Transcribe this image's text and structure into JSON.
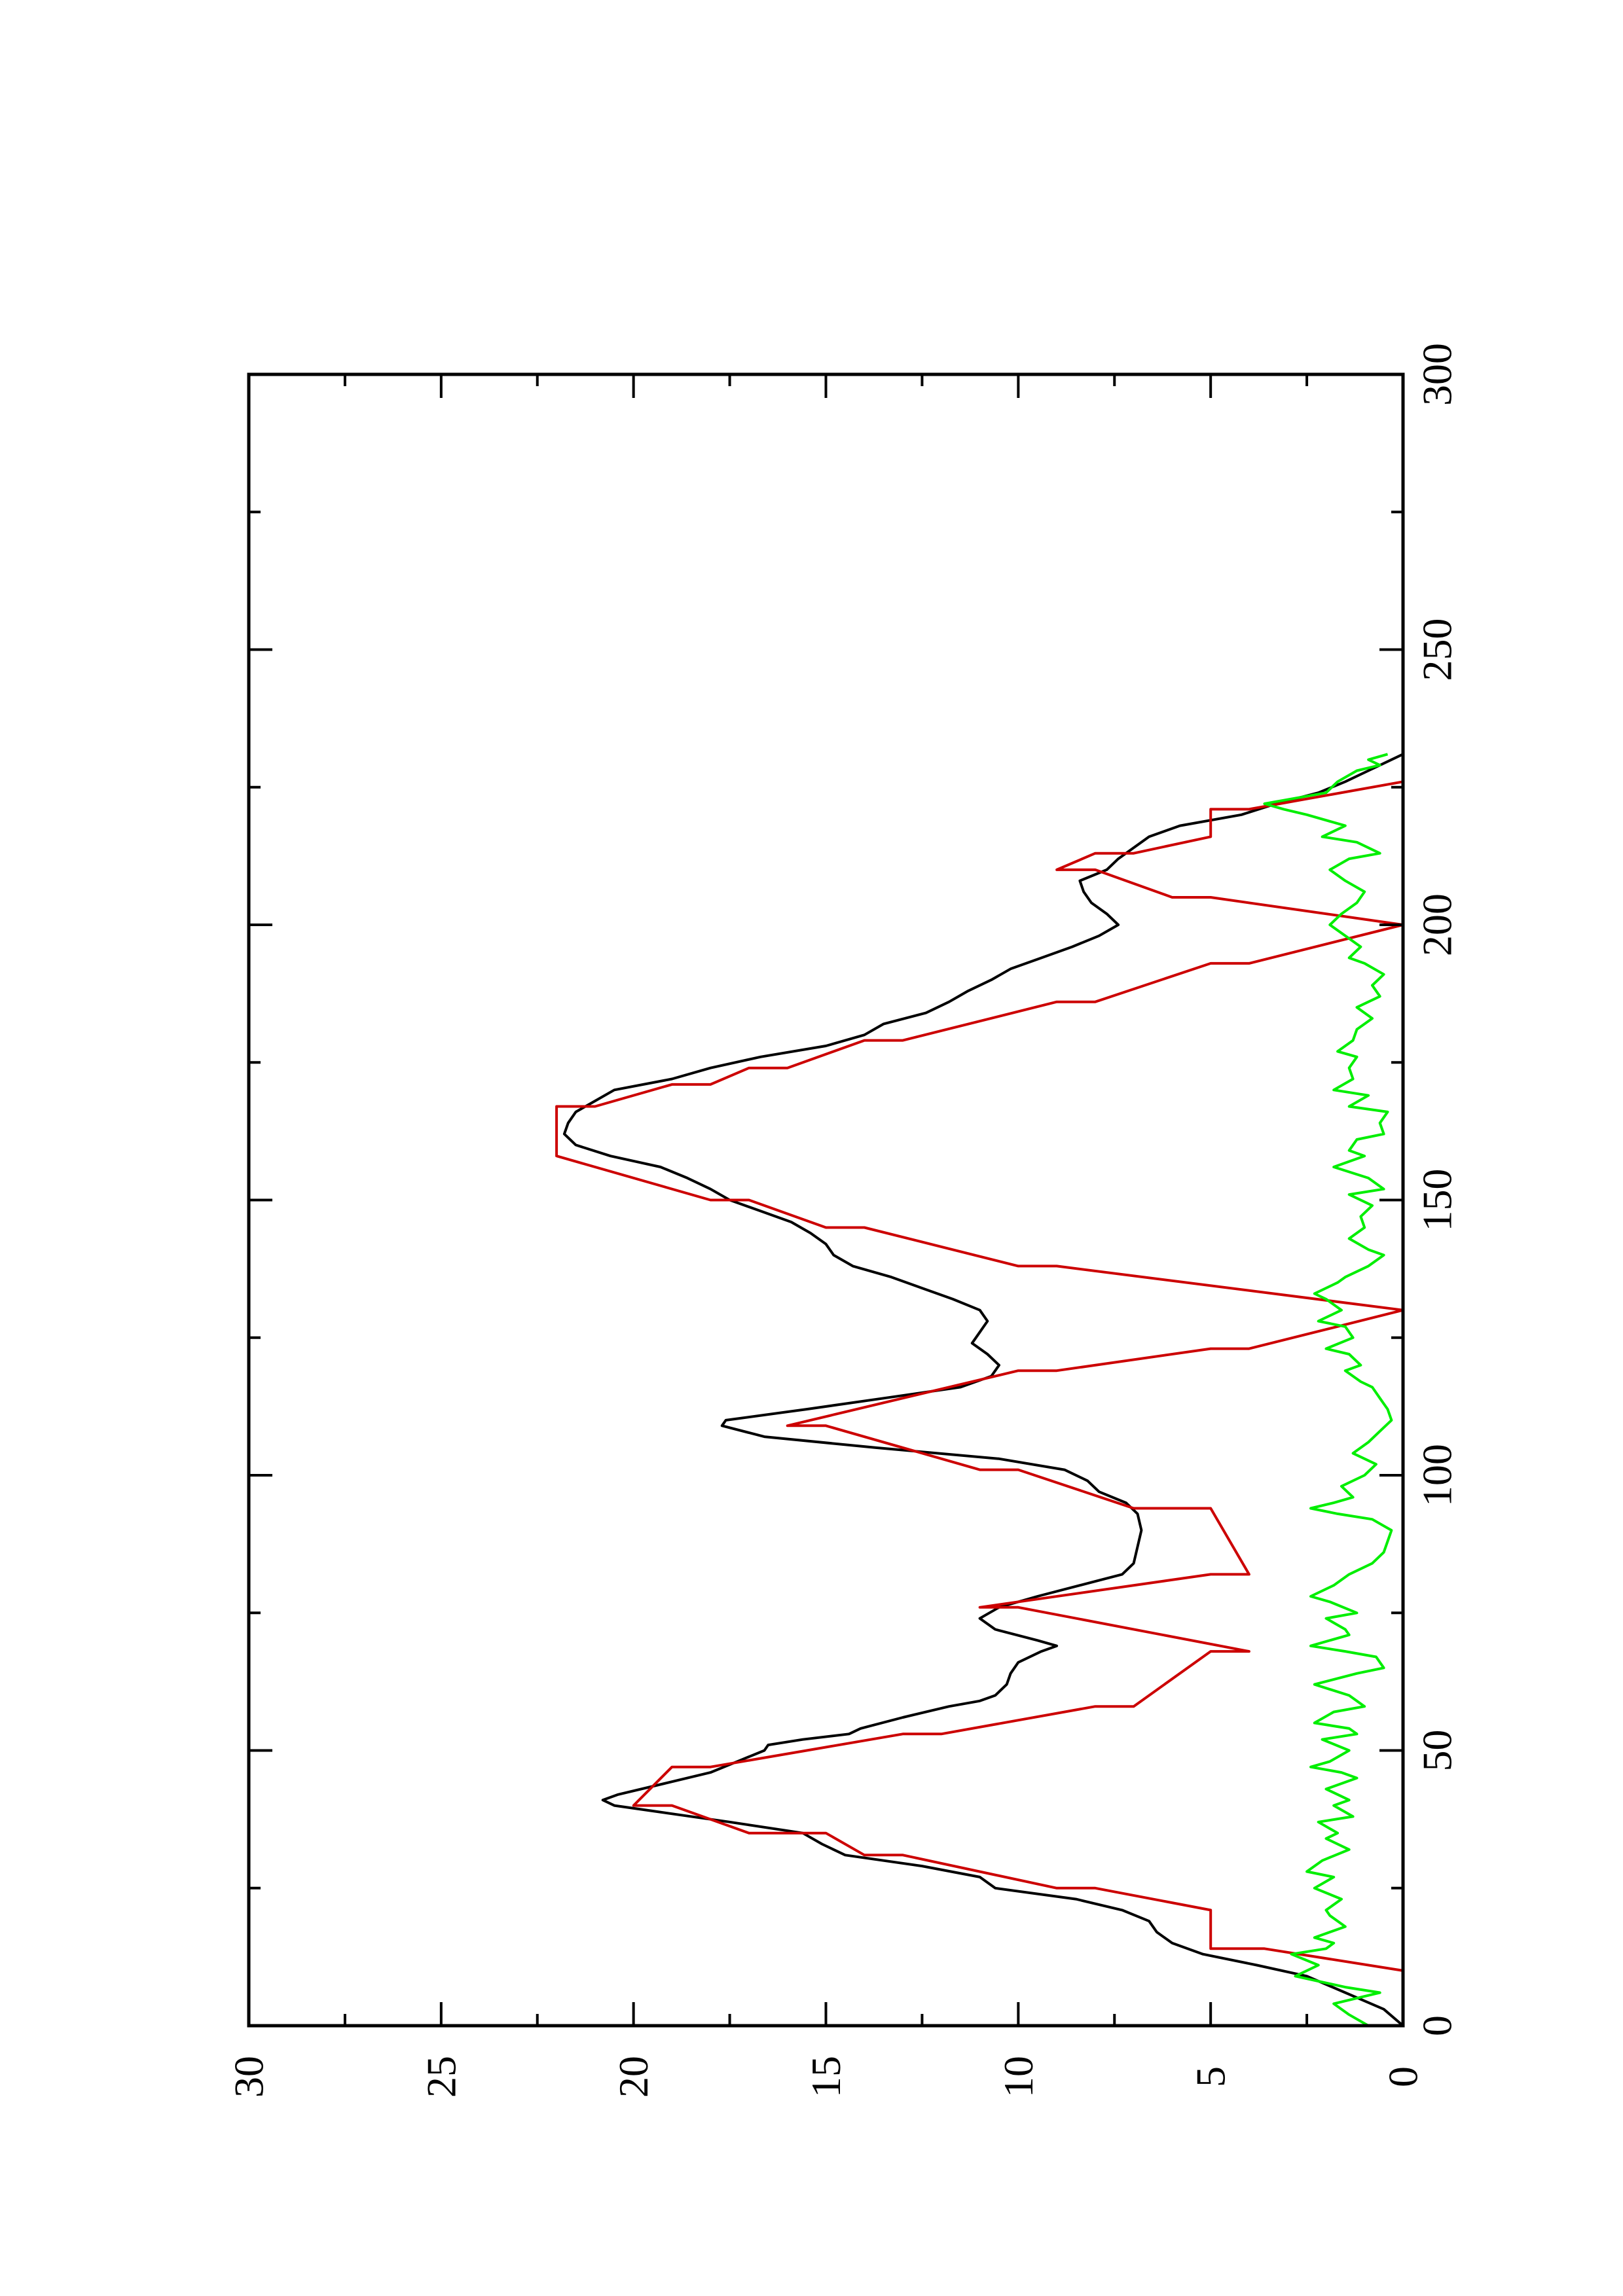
{
  "chart_data": {
    "type": "line",
    "orientation": "rotated-90-ccw",
    "title": "",
    "xlabel": "",
    "ylabel": "",
    "xlim": [
      0,
      300
    ],
    "ylim": [
      0,
      30
    ],
    "x_ticks": [
      0,
      50,
      100,
      150,
      200,
      250,
      300
    ],
    "y_ticks": [
      0,
      5,
      10,
      15,
      20,
      25,
      30
    ],
    "x_tick_labels": [
      "0",
      "50",
      "100",
      "150",
      "200",
      "250",
      "300"
    ],
    "y_tick_labels": [
      "0",
      "5",
      "10",
      "15",
      "20",
      "25",
      "30"
    ],
    "grid": false,
    "legend": "none",
    "series": [
      {
        "color": "#000000",
        "points": [
          [
            0,
            0
          ],
          [
            3,
            0.5
          ],
          [
            6,
            1.5
          ],
          [
            9,
            2.5
          ],
          [
            11,
            3.8
          ],
          [
            13,
            5.2
          ],
          [
            15,
            6
          ],
          [
            17,
            6.4
          ],
          [
            19,
            6.6
          ],
          [
            21,
            7.3
          ],
          [
            23,
            8.5
          ],
          [
            25,
            10.6
          ],
          [
            27,
            11
          ],
          [
            29,
            12.5
          ],
          [
            31,
            14.5
          ],
          [
            33,
            15.1
          ],
          [
            35,
            15.6
          ],
          [
            37,
            17.5
          ],
          [
            39,
            19.5
          ],
          [
            40,
            20.5
          ],
          [
            41,
            20.8
          ],
          [
            42,
            20.4
          ],
          [
            44,
            19.2
          ],
          [
            46,
            18
          ],
          [
            48,
            17.3
          ],
          [
            50,
            16.6
          ],
          [
            51,
            16.5
          ],
          [
            52,
            15.6
          ],
          [
            53,
            14.4
          ],
          [
            54,
            14.1
          ],
          [
            56,
            13
          ],
          [
            58,
            11.8
          ],
          [
            59,
            11
          ],
          [
            60,
            10.6
          ],
          [
            62,
            10.3
          ],
          [
            64,
            10.2
          ],
          [
            66,
            10
          ],
          [
            68,
            9.4
          ],
          [
            69,
            9
          ],
          [
            70,
            9.5
          ],
          [
            72,
            10.6
          ],
          [
            74,
            11
          ],
          [
            76,
            10.5
          ],
          [
            78,
            9.5
          ],
          [
            80,
            8.4
          ],
          [
            82,
            7.3
          ],
          [
            84,
            7
          ],
          [
            87,
            6.9
          ],
          [
            90,
            6.8
          ],
          [
            93,
            6.9
          ],
          [
            95,
            7.2
          ],
          [
            97,
            7.9
          ],
          [
            99,
            8.2
          ],
          [
            101,
            8.8
          ],
          [
            103,
            10.5
          ],
          [
            105,
            13.7
          ],
          [
            107,
            16.6
          ],
          [
            109,
            17.7
          ],
          [
            110,
            17.6
          ],
          [
            112,
            15.5
          ],
          [
            114,
            13.5
          ],
          [
            116,
            11.5
          ],
          [
            118,
            10.7
          ],
          [
            120,
            10.5
          ],
          [
            122,
            10.8
          ],
          [
            124,
            11.2
          ],
          [
            126,
            11
          ],
          [
            128,
            10.8
          ],
          [
            130,
            11
          ],
          [
            132,
            11.7
          ],
          [
            134,
            12.5
          ],
          [
            136,
            13.3
          ],
          [
            138,
            14.3
          ],
          [
            140,
            14.8
          ],
          [
            142,
            15
          ],
          [
            144,
            15.4
          ],
          [
            146,
            15.9
          ],
          [
            148,
            16.7
          ],
          [
            150,
            17.5
          ],
          [
            152,
            18
          ],
          [
            154,
            18.6
          ],
          [
            156,
            19.3
          ],
          [
            158,
            20.6
          ],
          [
            160,
            21.5
          ],
          [
            162,
            21.8
          ],
          [
            164,
            21.7
          ],
          [
            166,
            21.5
          ],
          [
            168,
            21
          ],
          [
            170,
            20.5
          ],
          [
            172,
            19
          ],
          [
            174,
            18
          ],
          [
            176,
            16.7
          ],
          [
            178,
            15
          ],
          [
            180,
            14
          ],
          [
            182,
            13.5
          ],
          [
            184,
            12.4
          ],
          [
            186,
            11.8
          ],
          [
            188,
            11.3
          ],
          [
            190,
            10.7
          ],
          [
            192,
            10.2
          ],
          [
            194,
            9.4
          ],
          [
            196,
            8.6
          ],
          [
            198,
            7.9
          ],
          [
            200,
            7.4
          ],
          [
            202,
            7.7
          ],
          [
            204,
            8.1
          ],
          [
            206,
            8.3
          ],
          [
            208,
            8.4
          ],
          [
            210,
            7.7
          ],
          [
            212,
            7.4
          ],
          [
            214,
            7
          ],
          [
            216,
            6.6
          ],
          [
            218,
            5.8
          ],
          [
            220,
            4.2
          ],
          [
            222,
            3.3
          ],
          [
            224,
            2.2
          ],
          [
            226,
            1.5
          ],
          [
            228,
            0.9
          ],
          [
            230,
            0.3
          ],
          [
            231,
            0
          ]
        ]
      },
      {
        "color": "#cc0000",
        "points": [
          [
            10,
            0
          ],
          [
            14,
            3.6
          ],
          [
            14,
            5
          ],
          [
            21,
            5
          ],
          [
            25,
            8
          ],
          [
            25,
            9
          ],
          [
            31,
            13
          ],
          [
            31,
            14
          ],
          [
            35,
            15
          ],
          [
            35,
            17
          ],
          [
            40,
            19
          ],
          [
            40,
            20
          ],
          [
            47,
            19
          ],
          [
            47,
            18
          ],
          [
            53,
            13
          ],
          [
            53,
            12
          ],
          [
            58,
            8
          ],
          [
            58,
            7
          ],
          [
            68,
            5
          ],
          [
            68,
            4
          ],
          [
            76,
            10
          ],
          [
            76,
            11
          ],
          [
            82,
            5
          ],
          [
            82,
            4
          ],
          [
            94,
            5
          ],
          [
            94,
            7
          ],
          [
            101,
            10
          ],
          [
            101,
            11
          ],
          [
            109,
            15
          ],
          [
            109,
            16
          ],
          [
            119,
            10
          ],
          [
            119,
            9
          ],
          [
            123,
            5
          ],
          [
            123,
            4
          ],
          [
            130,
            0
          ],
          [
            138,
            9
          ],
          [
            138,
            10
          ],
          [
            145,
            14
          ],
          [
            145,
            15
          ],
          [
            150,
            17
          ],
          [
            150,
            18
          ],
          [
            158,
            22
          ],
          [
            167,
            22
          ],
          [
            167,
            21
          ],
          [
            171,
            19
          ],
          [
            171,
            18
          ],
          [
            174,
            17
          ],
          [
            174,
            16
          ],
          [
            179,
            14
          ],
          [
            179,
            13
          ],
          [
            186,
            9
          ],
          [
            186,
            8
          ],
          [
            193,
            5
          ],
          [
            193,
            4
          ],
          [
            200,
            0
          ],
          [
            205,
            5
          ],
          [
            205,
            6
          ],
          [
            210,
            8
          ],
          [
            210,
            9
          ],
          [
            213,
            8
          ],
          [
            213,
            7
          ],
          [
            216,
            5
          ],
          [
            221,
            5
          ],
          [
            221,
            4
          ],
          [
            226,
            0
          ]
        ]
      },
      {
        "color": "#00ee00",
        "points": [
          [
            0,
            0.9
          ],
          [
            2,
            1.4
          ],
          [
            4,
            1.8
          ],
          [
            6,
            0.6
          ],
          [
            7,
            1.5
          ],
          [
            9,
            2.8
          ],
          [
            11,
            2.2
          ],
          [
            13,
            2.9
          ],
          [
            14,
            2
          ],
          [
            15,
            1.8
          ],
          [
            16,
            2.3
          ],
          [
            18,
            1.5
          ],
          [
            20,
            1.9
          ],
          [
            21,
            2
          ],
          [
            23,
            1.6
          ],
          [
            25,
            2.3
          ],
          [
            27,
            1.8
          ],
          [
            28,
            2.5
          ],
          [
            30,
            2.1
          ],
          [
            32,
            1.4
          ],
          [
            34,
            2
          ],
          [
            35,
            1.7
          ],
          [
            37,
            2.2
          ],
          [
            38,
            1.3
          ],
          [
            40,
            1.8
          ],
          [
            41,
            1.4
          ],
          [
            43,
            2
          ],
          [
            45,
            1.2
          ],
          [
            46,
            1.6
          ],
          [
            47,
            2.4
          ],
          [
            48,
            1.9
          ],
          [
            50,
            1.4
          ],
          [
            52,
            2.1
          ],
          [
            53,
            1.2
          ],
          [
            54,
            1.4
          ],
          [
            55,
            2.3
          ],
          [
            57,
            1.8
          ],
          [
            58,
            1
          ],
          [
            60,
            1.4
          ],
          [
            62,
            2.3
          ],
          [
            64,
            1.2
          ],
          [
            65,
            0.5
          ],
          [
            67,
            0.7
          ],
          [
            68,
            1.5
          ],
          [
            69,
            2.4
          ],
          [
            71,
            1.4
          ],
          [
            72,
            1.5
          ],
          [
            74,
            2
          ],
          [
            75,
            1.2
          ],
          [
            77,
            1.9
          ],
          [
            78,
            2.4
          ],
          [
            80,
            1.8
          ],
          [
            82,
            1.4
          ],
          [
            84,
            0.8
          ],
          [
            86,
            0.5
          ],
          [
            88,
            0.4
          ],
          [
            90,
            0.3
          ],
          [
            92,
            0.8
          ],
          [
            93,
            1.7
          ],
          [
            94,
            2.4
          ],
          [
            95,
            1.8
          ],
          [
            96,
            1.3
          ],
          [
            98,
            1.6
          ],
          [
            100,
            1
          ],
          [
            102,
            0.7
          ],
          [
            104,
            1.3
          ],
          [
            106,
            0.9
          ],
          [
            108,
            0.6
          ],
          [
            110,
            0.3
          ],
          [
            112,
            0.4
          ],
          [
            114,
            0.6
          ],
          [
            116,
            0.8
          ],
          [
            117,
            1.1
          ],
          [
            119,
            1.5
          ],
          [
            120,
            1.1
          ],
          [
            122,
            1.4
          ],
          [
            123,
            2
          ],
          [
            125,
            1.3
          ],
          [
            127,
            1.5
          ],
          [
            128,
            2.2
          ],
          [
            130,
            1.6
          ],
          [
            132,
            2
          ],
          [
            133,
            2.3
          ],
          [
            135,
            1.7
          ],
          [
            136,
            1.5
          ],
          [
            138,
            0.9
          ],
          [
            140,
            0.5
          ],
          [
            141,
            0.9
          ],
          [
            143,
            1.4
          ],
          [
            145,
            1
          ],
          [
            147,
            1.1
          ],
          [
            149,
            0.8
          ],
          [
            151,
            1.4
          ],
          [
            152,
            0.5
          ],
          [
            154,
            0.9
          ],
          [
            156,
            1.8
          ],
          [
            158,
            1
          ],
          [
            159,
            1.4
          ],
          [
            161,
            1.2
          ],
          [
            162,
            0.5
          ],
          [
            164,
            0.6
          ],
          [
            166,
            0.4
          ],
          [
            167,
            1.4
          ],
          [
            169,
            0.9
          ],
          [
            170,
            1.8
          ],
          [
            172,
            1.3
          ],
          [
            174,
            1.4
          ],
          [
            176,
            1.2
          ],
          [
            177,
            1.7
          ],
          [
            179,
            1.3
          ],
          [
            181,
            1.2
          ],
          [
            183,
            0.8
          ],
          [
            185,
            1.2
          ],
          [
            187,
            0.6
          ],
          [
            189,
            0.8
          ],
          [
            191,
            0.5
          ],
          [
            193,
            1
          ],
          [
            194,
            1.4
          ],
          [
            196,
            1.1
          ],
          [
            198,
            1.5
          ],
          [
            200,
            1.9
          ],
          [
            202,
            1.6
          ],
          [
            204,
            1.2
          ],
          [
            206,
            1
          ],
          [
            208,
            1.5
          ],
          [
            210,
            1.9
          ],
          [
            212,
            1.4
          ],
          [
            213,
            0.6
          ],
          [
            215,
            1.2
          ],
          [
            216,
            2.1
          ],
          [
            218,
            1.5
          ],
          [
            220,
            2.5
          ],
          [
            221,
            3.1
          ],
          [
            222,
            3.6
          ],
          [
            224,
            2
          ],
          [
            226,
            1.7
          ],
          [
            228,
            1.2
          ],
          [
            229,
            0.6
          ],
          [
            230,
            0.9
          ],
          [
            231,
            0.4
          ]
        ]
      }
    ]
  }
}
